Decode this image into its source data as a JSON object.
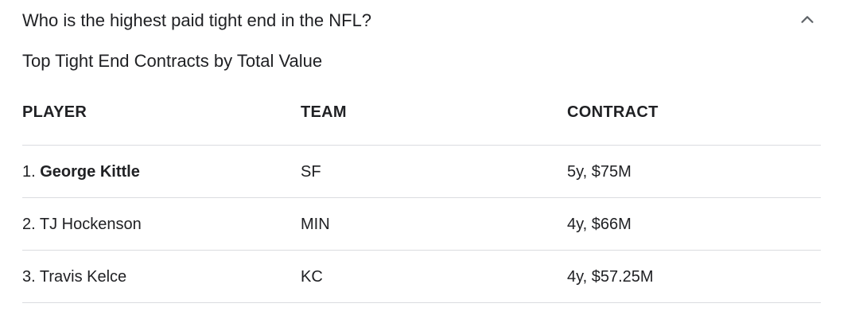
{
  "question": "Who is the highest paid tight end in the NFL?",
  "subtitle": "Top Tight End Contracts by Total Value",
  "table": {
    "headers": {
      "player": "PLAYER",
      "team": "TEAM",
      "contract": "CONTRACT"
    },
    "rows": [
      {
        "rank": "1.",
        "player": "George Kittle",
        "team": "SF",
        "contract": "5y, $75M",
        "bold": true
      },
      {
        "rank": "2.",
        "player": "TJ Hockenson",
        "team": "MIN",
        "contract": "4y, $66M",
        "bold": false
      },
      {
        "rank": "3.",
        "player": "Travis Kelce",
        "team": "KC",
        "contract": "4y, $57.25M",
        "bold": false
      }
    ]
  },
  "icons": {
    "collapse": "chevron-up-icon"
  },
  "colors": {
    "text": "#202124",
    "divider": "#dadce0",
    "icon": "#5f6368"
  }
}
